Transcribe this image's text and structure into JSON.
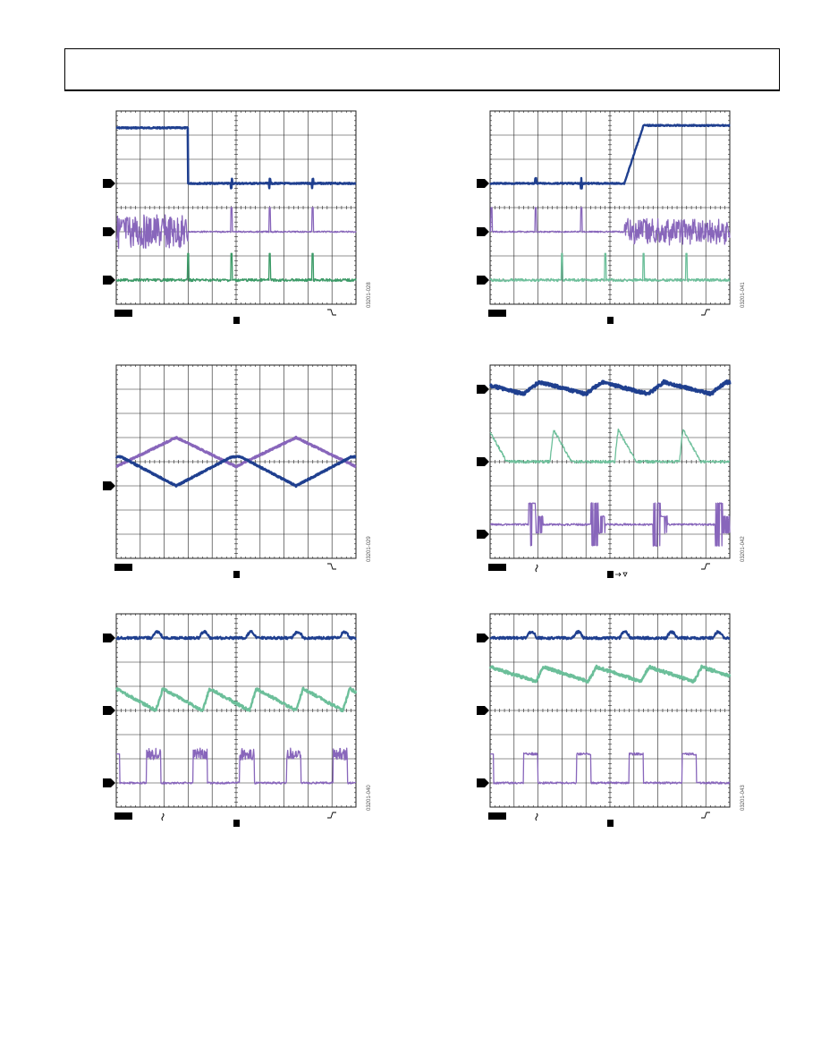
{
  "colors": {
    "blue": "#1f3f8f",
    "purple": "#8866bb",
    "green": "#3a9a66",
    "teal": "#6cbf9a",
    "grid": "#222222",
    "marker": "#000000"
  },
  "scopes": [
    {
      "id": "scope-1",
      "figure_id": "03201-028",
      "trigger_slope": "falling",
      "coupling_marks": 0,
      "channels": [
        {
          "color": "blue",
          "shape": "step-down",
          "marker_div": 3.0
        },
        {
          "color": "purple",
          "shape": "burst-then-spikes",
          "marker_div": 5.0
        },
        {
          "color": "green",
          "shape": "spikes",
          "marker_div": 7.0
        }
      ]
    },
    {
      "id": "scope-2",
      "figure_id": "03201-041",
      "trigger_slope": "rising",
      "coupling_marks": 0,
      "channels": [
        {
          "color": "blue",
          "shape": "ramp-up",
          "marker_div": 3.0
        },
        {
          "color": "purple",
          "shape": "spikes-then-burst",
          "marker_div": 5.0
        },
        {
          "color": "teal",
          "shape": "spikes",
          "marker_div": 7.0
        }
      ]
    },
    {
      "id": "scope-3",
      "figure_id": "03201-029",
      "trigger_slope": "falling",
      "coupling_marks": 0,
      "channels": [
        {
          "color": "purple",
          "shape": "triangle-high"
        },
        {
          "color": "blue",
          "shape": "triangle-clipped",
          "marker_div": 5.0
        }
      ]
    },
    {
      "id": "scope-4",
      "figure_id": "03201-042",
      "trigger_slope": "rising",
      "coupling_marks": 1,
      "channels": [
        {
          "color": "blue",
          "shape": "sawtooth-thick",
          "marker_div": 1.0
        },
        {
          "color": "teal",
          "shape": "decay-pulses",
          "marker_div": 4.0
        },
        {
          "color": "purple",
          "shape": "ringing-pulses",
          "marker_div": 7.0
        }
      ]
    },
    {
      "id": "scope-5",
      "figure_id": "03201-040",
      "trigger_slope": "rising",
      "coupling_marks": 1,
      "channels": [
        {
          "color": "blue",
          "shape": "ripple",
          "marker_div": 1.0
        },
        {
          "color": "teal",
          "shape": "sawtooth",
          "marker_div": 4.0
        },
        {
          "color": "purple",
          "shape": "square-noisy",
          "marker_div": 7.0
        }
      ]
    },
    {
      "id": "scope-6",
      "figure_id": "03201-043",
      "trigger_slope": "rising",
      "coupling_marks": 1,
      "channels": [
        {
          "color": "blue",
          "shape": "ripple",
          "marker_div": 1.0
        },
        {
          "color": "teal",
          "shape": "sawtooth-mid",
          "marker_div": 4.0
        },
        {
          "color": "purple",
          "shape": "square",
          "marker_div": 7.0
        }
      ]
    }
  ]
}
